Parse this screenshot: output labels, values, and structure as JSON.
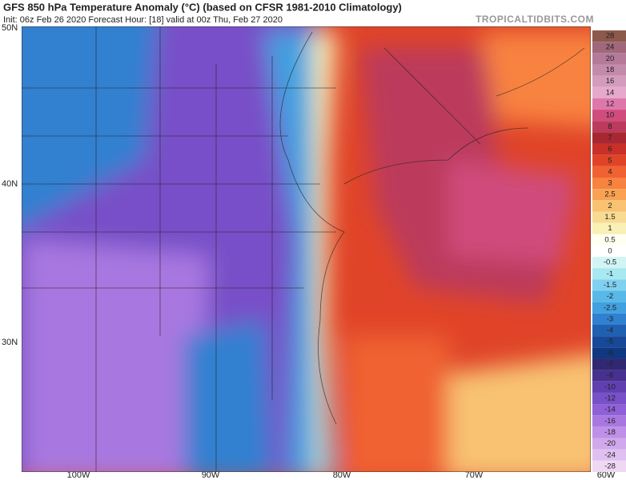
{
  "header": {
    "title": "GFS 850 hPa Temperature Anomaly (°C) (based on CFSR 1981-2010 Climatology)",
    "init": "Init: 06z Feb 26 2020   Forecast Hour: [18]   valid at 00z Thu, Feb 27 2020",
    "site": "TROPICALTIDBITS.COM"
  },
  "map": {
    "lat_labels": [
      "50N",
      "40N",
      "30N"
    ],
    "lon_labels": [
      "100W",
      "90W",
      "80W",
      "70W",
      "60W"
    ]
  },
  "colorbar": [
    {
      "label": 28,
      "color": "#8c5a4c"
    },
    {
      "label": 24,
      "color": "#a0687a"
    },
    {
      "label": 20,
      "color": "#b47a98"
    },
    {
      "label": 18,
      "color": "#c48aaa"
    },
    {
      "label": 16,
      "color": "#d49cbc"
    },
    {
      "label": 14,
      "color": "#e6a8cc"
    },
    {
      "label": 12,
      "color": "#de78ac"
    },
    {
      "label": 10,
      "color": "#d04c7c"
    },
    {
      "label": 8,
      "color": "#bc3a5c"
    },
    {
      "label": 7,
      "color": "#a82832"
    },
    {
      "label": 6,
      "color": "#c83028"
    },
    {
      "label": 5,
      "color": "#e04428"
    },
    {
      "label": 4,
      "color": "#f06232"
    },
    {
      "label": 3,
      "color": "#f88240"
    },
    {
      "label": 2.5,
      "color": "#f8a252"
    },
    {
      "label": 2,
      "color": "#f8c272"
    },
    {
      "label": 1.5,
      "color": "#f8da92"
    },
    {
      "label": 1,
      "color": "#f8f0b4"
    },
    {
      "label": 0.5,
      "color": "#fffff2"
    },
    {
      "label": 0,
      "color": "#ffffff"
    },
    {
      "label": -0.5,
      "color": "#d2f4f4"
    },
    {
      "label": -1,
      "color": "#a8e8f0"
    },
    {
      "label": -1.5,
      "color": "#80d0f0"
    },
    {
      "label": -2,
      "color": "#58b8e8"
    },
    {
      "label": -2.5,
      "color": "#40a0e0"
    },
    {
      "label": -3,
      "color": "#3080d0"
    },
    {
      "label": -4,
      "color": "#2060b0"
    },
    {
      "label": -5,
      "color": "#184898"
    },
    {
      "label": -6,
      "color": "#103880"
    },
    {
      "label": -7,
      "color": "#302870"
    },
    {
      "label": -8,
      "color": "#483090"
    },
    {
      "label": -10,
      "color": "#6040b0"
    },
    {
      "label": -12,
      "color": "#7850c8"
    },
    {
      "label": -14,
      "color": "#9060d8"
    },
    {
      "label": -16,
      "color": "#a878e0"
    },
    {
      "label": -18,
      "color": "#c090e8"
    },
    {
      "label": -20,
      "color": "#d0a8ec"
    },
    {
      "label": -24,
      "color": "#e0c0f0"
    },
    {
      "label": -28,
      "color": "#f0d8f4"
    }
  ]
}
